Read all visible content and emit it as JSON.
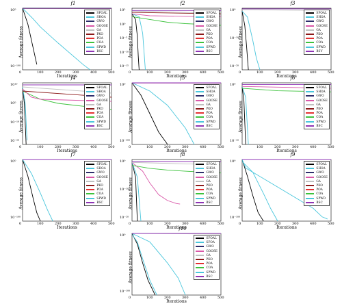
{
  "common": {
    "xlabel": "Iterations",
    "ylabel": "Average fitness",
    "xlim": [
      0,
      500
    ],
    "xticks": [
      "0",
      "100",
      "200",
      "300",
      "400",
      "500"
    ]
  },
  "colors": {
    "SFOAL": "#000000",
    "SFOA": "#2d2d6b",
    "GWO": "#1e3c8c",
    "GOOSE": "#d957a8",
    "GA": "#c0c0c0",
    "PKO": "#8c1a1a",
    "POA": "#e23030",
    "COA": "#3cc23c",
    "SPWD": "#49c6dc",
    "BSC": "#8e33b5",
    "lavender": "#c6a9e0"
  },
  "chart_data": [
    {
      "title": "f1",
      "type": "line",
      "yticks": [
        "10⁰",
        "10⁻¹⁰⁰"
      ],
      "legend": [
        "SFOAL",
        "SHOA",
        "GWO",
        "GOOSE",
        "GA",
        "PKO",
        "POA",
        "COA",
        "SPWD",
        "BSC"
      ],
      "series": [
        {
          "name": "SFOAL",
          "x": [
            0,
            30,
            60,
            80
          ],
          "y": [
            0,
            -60,
            -150,
            -210
          ]
        },
        {
          "name": "SPWD",
          "x": [
            0,
            60,
            100,
            200,
            340,
            380
          ],
          "y": [
            0,
            -40,
            -70,
            -130,
            -210,
            -230
          ]
        },
        {
          "name": "GA",
          "x": [
            0,
            500
          ],
          "y": [
            0,
            -2
          ]
        },
        {
          "name": "GOOSE",
          "x": [
            0,
            500
          ],
          "y": [
            -1,
            -1
          ]
        },
        {
          "name": "BSC",
          "x": [
            0,
            500
          ],
          "y": [
            0,
            0
          ]
        },
        {
          "name": "SFOA",
          "x": [
            0,
            500
          ],
          "y": [
            0,
            0
          ]
        }
      ]
    },
    {
      "title": "f2",
      "type": "line",
      "yticks": [
        "10⁵",
        "10⁰",
        "10⁻⁵",
        "10⁻¹⁰",
        "10⁻¹⁵"
      ],
      "legend": [
        "SFOAL",
        "SHOA",
        "GWO",
        "GOOSE",
        "GA",
        "PKO",
        "POA",
        "COA",
        "SPWD",
        "BSC"
      ],
      "series": [
        {
          "name": "SFOAL",
          "x": [
            0,
            20,
            30,
            35,
            40
          ],
          "y": [
            3,
            1,
            -5,
            -12,
            -17
          ]
        },
        {
          "name": "SPWD",
          "x": [
            0,
            40,
            60,
            75
          ],
          "y": [
            3,
            2,
            -4,
            -17
          ]
        },
        {
          "name": "COA",
          "x": [
            0,
            100,
            200,
            300,
            400,
            500
          ],
          "y": [
            2,
            1,
            0,
            -0.5,
            -0.8,
            -1.1
          ]
        },
        {
          "name": "GOOSE",
          "x": [
            0,
            100,
            300,
            500
          ],
          "y": [
            3,
            2.3,
            2.1,
            2.0
          ]
        },
        {
          "name": "GA",
          "x": [
            0,
            500
          ],
          "y": [
            4,
            3.2
          ]
        },
        {
          "name": "PKO",
          "x": [
            0,
            500
          ],
          "y": [
            3.5,
            3.0
          ]
        },
        {
          "name": "BSC",
          "x": [
            0,
            500
          ],
          "y": [
            4.2,
            4.2
          ]
        }
      ]
    },
    {
      "title": "f3",
      "type": "line",
      "yticks": [
        "10⁰",
        "10⁻¹⁰",
        "10⁻²⁰"
      ],
      "legend": [
        "SFOAL",
        "SHOA",
        "GWO",
        "GOOSE",
        "GA",
        "PKO",
        "POA",
        "COA",
        "SPWD",
        "BSV"
      ],
      "series": [
        {
          "name": "SFOAL",
          "x": [
            0,
            15,
            25,
            35
          ],
          "y": [
            0,
            -5,
            -12,
            -20
          ]
        },
        {
          "name": "SPWD",
          "x": [
            0,
            30,
            60,
            80,
            100
          ],
          "y": [
            0,
            -2,
            -10,
            -16,
            -20
          ]
        },
        {
          "name": "GA",
          "x": [
            0,
            500
          ],
          "y": [
            0.5,
            0.2
          ]
        },
        {
          "name": "BSC",
          "x": [
            0,
            500
          ],
          "y": [
            0.8,
            0.8
          ]
        }
      ]
    },
    {
      "title": "f4",
      "type": "line",
      "yticks": [
        "10¹⁰",
        "10⁰",
        "10⁻¹⁰",
        "10⁻²⁰"
      ],
      "legend": [
        "SFOAL",
        "SHOA",
        "GWO",
        "GOOSE",
        "GA",
        "PKO",
        "POA",
        "COA",
        "SPWD",
        "BSC"
      ],
      "series": [
        {
          "name": "SFOAL",
          "x": [
            0,
            10,
            20
          ],
          "y": [
            8,
            0,
            -20
          ]
        },
        {
          "name": "SPWD",
          "x": [
            0,
            15,
            25
          ],
          "y": [
            8,
            0,
            -18
          ]
        },
        {
          "name": "COA",
          "x": [
            0,
            100,
            200,
            300,
            400,
            500
          ],
          "y": [
            6,
            2,
            0,
            -1,
            -2,
            -3
          ]
        },
        {
          "name": "GOOSE",
          "x": [
            0,
            50,
            100,
            500
          ],
          "y": [
            7,
            3,
            2,
            1
          ]
        },
        {
          "name": "GA",
          "x": [
            0,
            500
          ],
          "y": [
            8,
            5
          ]
        },
        {
          "name": "PKO",
          "x": [
            0,
            500
          ],
          "y": [
            6,
            3
          ]
        },
        {
          "name": "BSC",
          "x": [
            0,
            500
          ],
          "y": [
            9,
            9
          ]
        }
      ]
    },
    {
      "title": "f5",
      "type": "line",
      "yticks": [
        "10⁰",
        "10⁻²⁰⁰"
      ],
      "legend": [
        "SFOAL",
        "SHOA",
        "GWO",
        "GOOSE",
        "GA",
        "PKO",
        "POA",
        "COA",
        "SPWD",
        "BSC"
      ],
      "series": [
        {
          "name": "SFOAL",
          "x": [
            0,
            50,
            100,
            150,
            200
          ],
          "y": [
            0,
            -60,
            -150,
            -240,
            -300
          ]
        },
        {
          "name": "SPWD",
          "x": [
            0,
            100,
            200,
            300,
            350
          ],
          "y": [
            0,
            -40,
            -110,
            -220,
            -300
          ]
        },
        {
          "name": "GA",
          "x": [
            0,
            500
          ],
          "y": [
            0,
            -3
          ]
        },
        {
          "name": "GOOSE",
          "x": [
            0,
            500
          ],
          "y": [
            -1,
            -1
          ]
        },
        {
          "name": "BSC",
          "x": [
            0,
            500
          ],
          "y": [
            0,
            0
          ]
        }
      ]
    },
    {
      "title": "f6",
      "type": "line",
      "yticks": [
        "10⁰",
        "10⁻¹⁰"
      ],
      "legend": [
        "SFOAL",
        "SHOA",
        "GWO",
        "GOOSE",
        "GA",
        "PKO",
        "POA",
        "COA",
        "SPWD",
        "BSC"
      ],
      "series": [
        {
          "name": "SFOAL",
          "x": [
            0,
            10,
            20
          ],
          "y": [
            0,
            -4,
            -16
          ]
        },
        {
          "name": "SPWD",
          "x": [
            0,
            20,
            35
          ],
          "y": [
            0,
            -3,
            -16
          ]
        },
        {
          "name": "COA",
          "x": [
            0,
            200,
            500
          ],
          "y": [
            -0.5,
            -1.2,
            -1.5
          ]
        },
        {
          "name": "GOOSE",
          "x": [
            0,
            500
          ],
          "y": [
            0,
            -0.5
          ]
        },
        {
          "name": "BSC",
          "x": [
            0,
            500
          ],
          "y": [
            0.5,
            0.5
          ]
        }
      ]
    },
    {
      "title": "f7",
      "type": "line",
      "yticks": [
        "10⁰",
        "10⁻¹⁰⁰"
      ],
      "legend": [
        "SFOAL",
        "SHOA",
        "GWO",
        "GOOSE",
        "GA",
        "PKO",
        "POA",
        "COA",
        "SPWD",
        "BSC"
      ],
      "series": [
        {
          "name": "SFOAL",
          "x": [
            0,
            30,
            60,
            80,
            100
          ],
          "y": [
            0,
            -60,
            -140,
            -190,
            -220
          ]
        },
        {
          "name": "SPWD",
          "x": [
            0,
            50,
            100,
            140,
            170
          ],
          "y": [
            0,
            -50,
            -120,
            -180,
            -220
          ]
        },
        {
          "name": "BSC",
          "x": [
            0,
            500
          ],
          "y": [
            0,
            0
          ]
        }
      ]
    },
    {
      "title": "f8",
      "type": "line",
      "yticks": [
        "10⁰",
        "10⁻¹⁰",
        "10⁻²⁰"
      ],
      "legend": [
        "SFOAL",
        "SHOA",
        "GWO",
        "GOOSE",
        "GA",
        "PKO",
        "POA",
        "COA",
        "SPWD",
        "BSC"
      ],
      "series": [
        {
          "name": "SFOAL",
          "x": [
            0,
            20,
            30
          ],
          "y": [
            0,
            -5,
            -20
          ]
        },
        {
          "name": "SPWD",
          "x": [
            0,
            30,
            50
          ],
          "y": [
            0,
            -5,
            -20
          ]
        },
        {
          "name": "GOOSE",
          "x": [
            0,
            60,
            100,
            150,
            200,
            250,
            270
          ],
          "y": [
            0,
            -3,
            -7,
            -11,
            -13,
            -14,
            -14.2
          ]
        },
        {
          "name": "COA",
          "x": [
            0,
            100,
            200,
            300,
            400,
            500
          ],
          "y": [
            -1,
            -2,
            -2.6,
            -3,
            -3.3,
            -3.6
          ]
        },
        {
          "name": "GA",
          "x": [
            0,
            500
          ],
          "y": [
            0,
            -0.8
          ]
        },
        {
          "name": "BSC",
          "x": [
            0,
            500
          ],
          "y": [
            0.3,
            0.3
          ]
        }
      ]
    },
    {
      "title": "f9",
      "type": "line",
      "yticks": [
        "10⁰",
        "10⁻¹⁰⁰"
      ],
      "legend": [
        "SFOAL",
        "SHOA",
        "GWO",
        "GOOSE",
        "GA",
        "PKO",
        "POA",
        "COA",
        "SPWD",
        "BSC"
      ],
      "series": [
        {
          "name": "SFOAL",
          "x": [
            0,
            30,
            60,
            90,
            120
          ],
          "y": [
            0,
            -80,
            -170,
            -250,
            -290
          ]
        },
        {
          "name": "SPWD",
          "x": [
            0,
            20,
            200,
            400,
            450,
            480
          ],
          "y": [
            0,
            -40,
            -130,
            -230,
            -270,
            -280
          ]
        },
        {
          "name": "SHOA",
          "x": [
            0,
            60,
            120,
            160,
            200
          ],
          "y": [
            -10,
            -60,
            -160,
            -230,
            -290
          ]
        },
        {
          "name": "BSC",
          "x": [
            0,
            500
          ],
          "y": [
            0,
            0
          ]
        }
      ]
    },
    {
      "title": "f10",
      "type": "line",
      "yticks": [
        "10⁰",
        "10⁻¹⁰⁰"
      ],
      "legend": [
        "SFOAL",
        "SFOA",
        "GWO",
        "GOOSE",
        "GA",
        "PKO",
        "POA",
        "COA",
        "SPWD",
        "BSC"
      ],
      "series": [
        {
          "name": "SFOAL",
          "x": [
            0,
            30,
            60,
            90,
            130
          ],
          "y": [
            0,
            -50,
            -140,
            -220,
            -290
          ]
        },
        {
          "name": "SPWD",
          "x": [
            0,
            100,
            200,
            260,
            300
          ],
          "y": [
            0,
            -40,
            -140,
            -210,
            -290
          ]
        },
        {
          "name": "SHOA",
          "x": [
            0,
            30,
            60,
            100,
            140
          ],
          "y": [
            -5,
            -40,
            -120,
            -220,
            -290
          ]
        },
        {
          "name": "GA",
          "x": [
            0,
            500
          ],
          "y": [
            0,
            -3
          ]
        },
        {
          "name": "BSC",
          "x": [
            0,
            500
          ],
          "y": [
            0,
            0
          ]
        }
      ]
    }
  ]
}
